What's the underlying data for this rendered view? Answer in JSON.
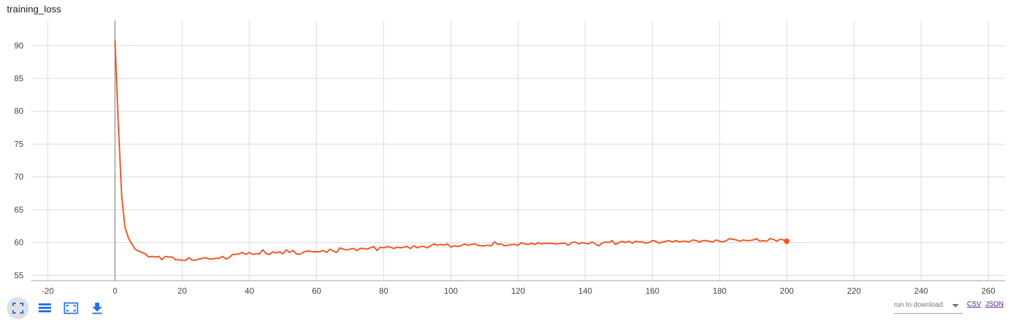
{
  "title": "training_loss",
  "accent_color": "#f4511e",
  "toolbar": {
    "buttons": [
      {
        "icon": "fullscreen-icon"
      },
      {
        "icon": "toggle-y-log-icon"
      },
      {
        "icon": "fit-domain-icon"
      },
      {
        "icon": "download-icon"
      }
    ]
  },
  "download": {
    "select_label": "run to download",
    "csv_label": "CSV",
    "json_label": "JSON"
  },
  "chart_data": {
    "type": "line",
    "title": "training_loss",
    "xlabel": "",
    "ylabel": "",
    "xlim": [
      -25,
      265
    ],
    "ylim": [
      54.2,
      93.8
    ],
    "x_ticks": [
      -20,
      0,
      20,
      40,
      60,
      80,
      100,
      120,
      140,
      160,
      180,
      200,
      220,
      240,
      260
    ],
    "y_ticks": [
      55,
      60,
      65,
      70,
      75,
      80,
      85,
      90
    ],
    "grid": true,
    "legend": "none",
    "series": [
      {
        "color": "#f4511e",
        "x_start": 0,
        "x_step": 1,
        "values": [
          90.8,
          78.0,
          67.0,
          62.3,
          60.7,
          59.8,
          59.0,
          58.7,
          58.5,
          58.3,
          57.8,
          57.9,
          57.8,
          57.9,
          57.4,
          57.9,
          57.8,
          57.8,
          57.4,
          57.4,
          57.3,
          57.3,
          57.7,
          57.3,
          57.3,
          57.5,
          57.6,
          57.7,
          57.5,
          57.5,
          57.6,
          57.6,
          57.9,
          57.5,
          57.7,
          58.2,
          58.2,
          58.3,
          58.5,
          58.2,
          58.5,
          58.2,
          58.3,
          58.3,
          58.9,
          58.3,
          58.2,
          58.6,
          58.4,
          58.6,
          58.3,
          58.9,
          58.5,
          58.8,
          58.3,
          58.2,
          58.5,
          58.7,
          58.7,
          58.6,
          58.6,
          58.6,
          58.8,
          58.5,
          59.0,
          58.7,
          58.5,
          59.2,
          59.0,
          58.9,
          59.0,
          59.1,
          58.8,
          59.1,
          59.1,
          59.0,
          59.2,
          59.4,
          58.8,
          59.3,
          59.2,
          59.4,
          59.3,
          59.1,
          59.3,
          59.2,
          59.3,
          59.4,
          59.1,
          59.5,
          59.2,
          59.4,
          59.4,
          59.2,
          59.5,
          59.8,
          59.6,
          59.7,
          59.6,
          59.8,
          59.3,
          59.5,
          59.4,
          59.5,
          59.8,
          59.6,
          59.7,
          59.8,
          59.6,
          59.5,
          59.5,
          59.6,
          59.5,
          60.1,
          59.7,
          59.8,
          59.5,
          59.6,
          59.7,
          59.7,
          59.6,
          60.0,
          59.8,
          59.7,
          59.9,
          59.7,
          60.0,
          59.8,
          59.9,
          59.9,
          59.9,
          59.8,
          59.8,
          59.9,
          59.9,
          59.6,
          60.0,
          60.1,
          59.8,
          60.0,
          59.9,
          59.8,
          60.1,
          59.8,
          59.5,
          59.9,
          60.1,
          60.0,
          60.3,
          59.7,
          60.0,
          60.2,
          60.0,
          60.2,
          59.9,
          60.2,
          60.1,
          60.1,
          59.9,
          60.0,
          60.3,
          60.2,
          59.9,
          60.1,
          60.2,
          60.3,
          60.1,
          60.3,
          60.1,
          60.2,
          60.2,
          60.1,
          60.4,
          60.3,
          60.1,
          60.3,
          60.3,
          60.2,
          60.1,
          60.4,
          60.2,
          60.1,
          60.3,
          60.6,
          60.5,
          60.4,
          60.2,
          60.4,
          60.3,
          60.3,
          60.4,
          60.6,
          60.2,
          60.3,
          60.2,
          60.6,
          60.5,
          60.2,
          60.5,
          60.4,
          60.2
        ]
      }
    ]
  }
}
